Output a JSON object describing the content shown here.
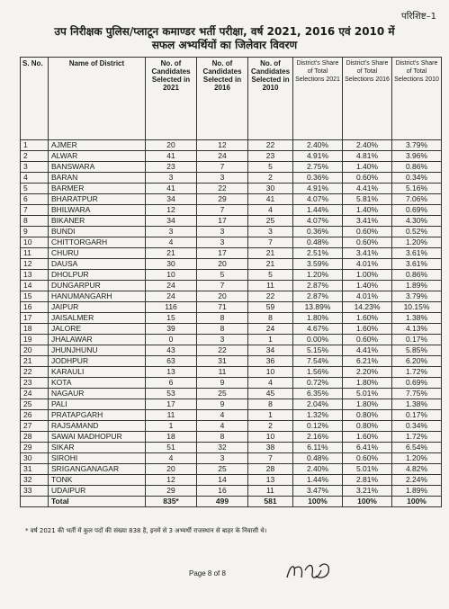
{
  "appendix_label": "परिशिष्ट–1",
  "title_line1": "उप निरीक्षक पुलिस/प्लाटून कमाण्डर भर्ती परीक्षा, वर्ष 2021, 2016 एवं 2010 में",
  "title_line2": "सफल अभ्यर्थियों का जिलेवार विवरण",
  "columns": [
    "S. No.",
    "Name of District",
    "No. of Candidates Selected in 2021",
    "No. of Candidates Selected in 2016",
    "No. of Candidates Selected in 2010",
    "District's Share of Total Selections 2021",
    "District's Share of Total Selections 2016",
    "District's Share of Total Selections 2010"
  ],
  "rows": [
    {
      "sn": "1",
      "district": "AJMER",
      "c2021": "20",
      "c2016": "12",
      "c2010": "22",
      "s2021": "2.40%",
      "s2016": "2.40%",
      "s2010": "3.79%"
    },
    {
      "sn": "2",
      "district": "ALWAR",
      "c2021": "41",
      "c2016": "24",
      "c2010": "23",
      "s2021": "4.91%",
      "s2016": "4.81%",
      "s2010": "3.96%"
    },
    {
      "sn": "3",
      "district": "BANSWARA",
      "c2021": "23",
      "c2016": "7",
      "c2010": "5",
      "s2021": "2.75%",
      "s2016": "1.40%",
      "s2010": "0.86%"
    },
    {
      "sn": "4",
      "district": "BARAN",
      "c2021": "3",
      "c2016": "3",
      "c2010": "2",
      "s2021": "0.36%",
      "s2016": "0.60%",
      "s2010": "0.34%"
    },
    {
      "sn": "5",
      "district": "BARMER",
      "c2021": "41",
      "c2016": "22",
      "c2010": "30",
      "s2021": "4.91%",
      "s2016": "4.41%",
      "s2010": "5.16%"
    },
    {
      "sn": "6",
      "district": "BHARATPUR",
      "c2021": "34",
      "c2016": "29",
      "c2010": "41",
      "s2021": "4.07%",
      "s2016": "5.81%",
      "s2010": "7.06%"
    },
    {
      "sn": "7",
      "district": "BHILWARA",
      "c2021": "12",
      "c2016": "7",
      "c2010": "4",
      "s2021": "1.44%",
      "s2016": "1.40%",
      "s2010": "0.69%"
    },
    {
      "sn": "8",
      "district": "BIKANER",
      "c2021": "34",
      "c2016": "17",
      "c2010": "25",
      "s2021": "4.07%",
      "s2016": "3.41%",
      "s2010": "4.30%"
    },
    {
      "sn": "9",
      "district": "BUNDI",
      "c2021": "3",
      "c2016": "3",
      "c2010": "3",
      "s2021": "0.36%",
      "s2016": "0.60%",
      "s2010": "0.52%"
    },
    {
      "sn": "10",
      "district": "CHITTORGARH",
      "c2021": "4",
      "c2016": "3",
      "c2010": "7",
      "s2021": "0.48%",
      "s2016": "0.60%",
      "s2010": "1.20%"
    },
    {
      "sn": "11",
      "district": "CHURU",
      "c2021": "21",
      "c2016": "17",
      "c2010": "21",
      "s2021": "2.51%",
      "s2016": "3.41%",
      "s2010": "3.61%"
    },
    {
      "sn": "12",
      "district": "DAUSA",
      "c2021": "30",
      "c2016": "20",
      "c2010": "21",
      "s2021": "3.59%",
      "s2016": "4.01%",
      "s2010": "3.61%"
    },
    {
      "sn": "13",
      "district": "DHOLPUR",
      "c2021": "10",
      "c2016": "5",
      "c2010": "5",
      "s2021": "1.20%",
      "s2016": "1.00%",
      "s2010": "0.86%"
    },
    {
      "sn": "14",
      "district": "DUNGARPUR",
      "c2021": "24",
      "c2016": "7",
      "c2010": "11",
      "s2021": "2.87%",
      "s2016": "1.40%",
      "s2010": "1.89%"
    },
    {
      "sn": "15",
      "district": "HANUMANGARH",
      "c2021": "24",
      "c2016": "20",
      "c2010": "22",
      "s2021": "2.87%",
      "s2016": "4.01%",
      "s2010": "3.79%"
    },
    {
      "sn": "16",
      "district": "JAIPUR",
      "c2021": "116",
      "c2016": "71",
      "c2010": "59",
      "s2021": "13.89%",
      "s2016": "14.23%",
      "s2010": "10.15%"
    },
    {
      "sn": "17",
      "district": "JAISALMER",
      "c2021": "15",
      "c2016": "8",
      "c2010": "8",
      "s2021": "1.80%",
      "s2016": "1.60%",
      "s2010": "1.38%"
    },
    {
      "sn": "18",
      "district": "JALORE",
      "c2021": "39",
      "c2016": "8",
      "c2010": "24",
      "s2021": "4.67%",
      "s2016": "1.60%",
      "s2010": "4.13%"
    },
    {
      "sn": "19",
      "district": "JHALAWAR",
      "c2021": "0",
      "c2016": "3",
      "c2010": "1",
      "s2021": "0.00%",
      "s2016": "0.60%",
      "s2010": "0.17%"
    },
    {
      "sn": "20",
      "district": "JHUNJHUNU",
      "c2021": "43",
      "c2016": "22",
      "c2010": "34",
      "s2021": "5.15%",
      "s2016": "4.41%",
      "s2010": "5.85%"
    },
    {
      "sn": "21",
      "district": "JODHPUR",
      "c2021": "63",
      "c2016": "31",
      "c2010": "36",
      "s2021": "7.54%",
      "s2016": "6.21%",
      "s2010": "6.20%"
    },
    {
      "sn": "22",
      "district": "KARAULI",
      "c2021": "13",
      "c2016": "11",
      "c2010": "10",
      "s2021": "1.56%",
      "s2016": "2.20%",
      "s2010": "1.72%"
    },
    {
      "sn": "23",
      "district": "KOTA",
      "c2021": "6",
      "c2016": "9",
      "c2010": "4",
      "s2021": "0.72%",
      "s2016": "1.80%",
      "s2010": "0.69%"
    },
    {
      "sn": "24",
      "district": "NAGAUR",
      "c2021": "53",
      "c2016": "25",
      "c2010": "45",
      "s2021": "6.35%",
      "s2016": "5.01%",
      "s2010": "7.75%"
    },
    {
      "sn": "25",
      "district": "PALI",
      "c2021": "17",
      "c2016": "9",
      "c2010": "8",
      "s2021": "2.04%",
      "s2016": "1.80%",
      "s2010": "1.38%"
    },
    {
      "sn": "26",
      "district": "PRATAPGARH",
      "c2021": "11",
      "c2016": "4",
      "c2010": "1",
      "s2021": "1.32%",
      "s2016": "0.80%",
      "s2010": "0.17%"
    },
    {
      "sn": "27",
      "district": "RAJSAMAND",
      "c2021": "1",
      "c2016": "4",
      "c2010": "2",
      "s2021": "0.12%",
      "s2016": "0.80%",
      "s2010": "0.34%"
    },
    {
      "sn": "28",
      "district": "SAWAI MADHOPUR",
      "c2021": "18",
      "c2016": "8",
      "c2010": "10",
      "s2021": "2.16%",
      "s2016": "1.60%",
      "s2010": "1.72%"
    },
    {
      "sn": "29",
      "district": "SIKAR",
      "c2021": "51",
      "c2016": "32",
      "c2010": "38",
      "s2021": "6.11%",
      "s2016": "6.41%",
      "s2010": "6.54%"
    },
    {
      "sn": "30",
      "district": "SIROHI",
      "c2021": "4",
      "c2016": "3",
      "c2010": "7",
      "s2021": "0.48%",
      "s2016": "0.60%",
      "s2010": "1.20%"
    },
    {
      "sn": "31",
      "district": "SRIGANGANAGAR",
      "c2021": "20",
      "c2016": "25",
      "c2010": "28",
      "s2021": "2.40%",
      "s2016": "5.01%",
      "s2010": "4.82%"
    },
    {
      "sn": "32",
      "district": "TONK",
      "c2021": "12",
      "c2016": "14",
      "c2010": "13",
      "s2021": "1.44%",
      "s2016": "2.81%",
      "s2010": "2.24%"
    },
    {
      "sn": "33",
      "district": "UDAIPUR",
      "c2021": "29",
      "c2016": "16",
      "c2010": "11",
      "s2021": "3.47%",
      "s2016": "3.21%",
      "s2010": "1.89%"
    }
  ],
  "total": {
    "label": "Total",
    "c2021": "835*",
    "c2016": "499",
    "c2010": "581",
    "s2021": "100%",
    "s2016": "100%",
    "s2010": "100%"
  },
  "footnote": "* वर्ष 2021 की भर्ती में कुल पदों की संख्या 838 है, इनमें से 3 अभ्यर्थी राजस्थान से बाहर के निवासी थे।",
  "page_number": "Page 8 of 8"
}
